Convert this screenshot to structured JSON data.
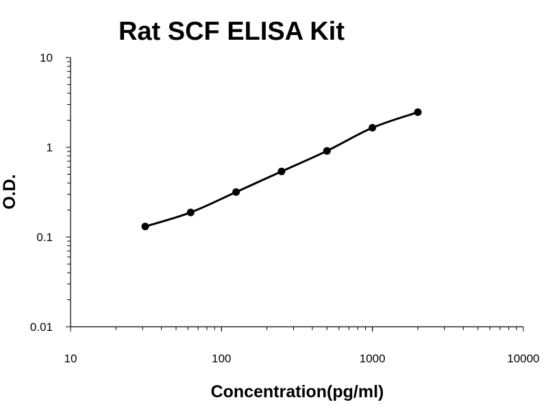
{
  "chart_data": {
    "type": "line",
    "title": "Rat SCF ELISA Kit",
    "xlabel": "Concentration(pg/ml)",
    "ylabel": "O.D.",
    "xscale": "log",
    "yscale": "log",
    "xlim": [
      10,
      10000
    ],
    "ylim": [
      0.01,
      10
    ],
    "xticks": [
      "10",
      "100",
      "1000",
      "10000"
    ],
    "yticks": [
      "0.01",
      "0.1",
      "1",
      "10"
    ],
    "grid": false,
    "legend": "none",
    "series": [
      {
        "x": [
          31.25,
          62.5,
          125,
          250,
          500,
          1000,
          2000
        ],
        "y": [
          0.131,
          0.188,
          0.317,
          0.538,
          0.911,
          1.65,
          2.46
        ],
        "color": "#000000",
        "markers": true,
        "smooth": true
      }
    ]
  }
}
